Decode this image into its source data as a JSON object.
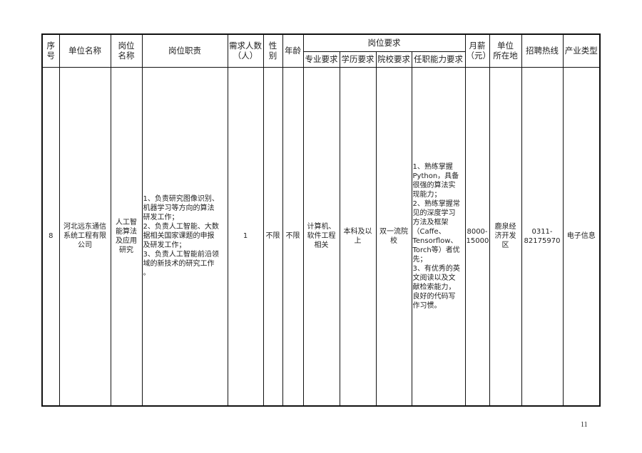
{
  "headers": {
    "seq": "序号",
    "unit_name": "单位名称",
    "post_name": "岗位\n名称",
    "duties": "岗位职责",
    "headcount": "需求人数\n（人）",
    "gender": "性\n别",
    "age": "年龄",
    "requirements": "岗位要求",
    "major": "专业要求",
    "education": "学历要求",
    "school": "院校要求",
    "ability": "任职能力要求",
    "salary": "月薪\n（元）",
    "location": "单位\n所在地",
    "hotline": "招聘热线",
    "industry": "产业类型"
  },
  "rows": [
    {
      "seq": "8",
      "unit_name": "河北远东通信\n系统工程有限\n公司",
      "post_name": "人工智\n能算法\n及应用\n研究",
      "duties": "1、负责研究图像识别、\n机器学习等方向的算法\n研发工作；\n2、负责人工智能、大数\n据相关国家课题的申报\n及研发工作；\n3、负责人工智能前沿领\n域的新技术的研究工作\n。",
      "headcount": "1",
      "gender": "不限",
      "age": "不限",
      "major": "计算机、\n软件工程\n相关",
      "education": "本科及以\n上",
      "school": "双一流院\n校",
      "ability": "1、熟练掌握\nPython，具备\n很强的算法实\n现能力；\n2、熟练掌握常\n见的深度学习\n方法及框架\n（Caffe、\nTensorflow、\nTorch等）者优\n先；\n3、有优秀的英\n文阅读以及文\n献检索能力，\n良好的代码写\n作习惯。",
      "salary": "8000-\n15000",
      "location": "鹿泉经\n济开发\n区",
      "hotline": "0311-\n82175970",
      "industry": "电子信息"
    }
  ],
  "page_number": "11"
}
